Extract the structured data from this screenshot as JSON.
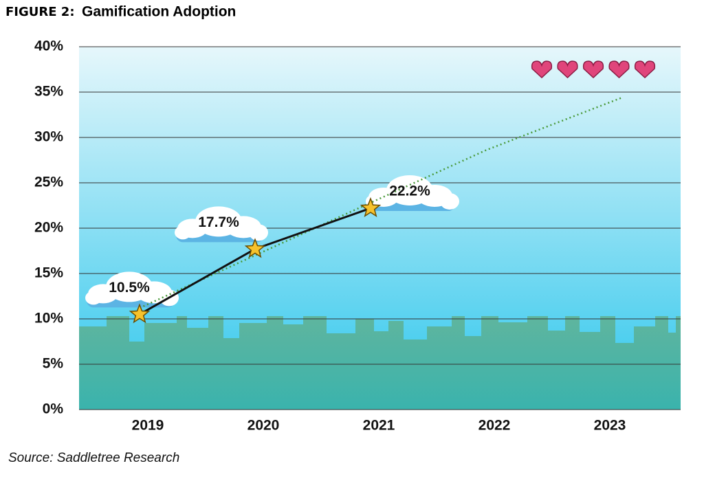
{
  "chart_data": {
    "type": "line",
    "figure_label": "FIGURE 2:",
    "title": "Gamification Adoption",
    "source": "Source: Saddletree Research",
    "categories": [
      "2019",
      "2020",
      "2021",
      "2022",
      "2023"
    ],
    "series": [
      {
        "color": "#111111",
        "values": [
          10.5,
          17.7,
          22.2,
          null,
          null
        ],
        "value_labels": [
          "10.5%",
          "17.7%",
          "22.2%",
          null,
          null
        ]
      }
    ],
    "trend": {
      "color": "#4a9a3a",
      "values": [
        11.2,
        17.0,
        22.8,
        28.6,
        34.4
      ]
    },
    "ylim": [
      0,
      40
    ],
    "yticks": [
      {
        "value": 0,
        "label": "0%"
      },
      {
        "value": 5,
        "label": "5%"
      },
      {
        "value": 10,
        "label": "10%"
      },
      {
        "value": 15,
        "label": "15%"
      },
      {
        "value": 20,
        "label": "20%"
      },
      {
        "value": 25,
        "label": "25%"
      },
      {
        "value": 30,
        "label": "30%"
      },
      {
        "value": 35,
        "label": "35%"
      },
      {
        "value": 40,
        "label": "40%"
      }
    ],
    "grid": true
  }
}
